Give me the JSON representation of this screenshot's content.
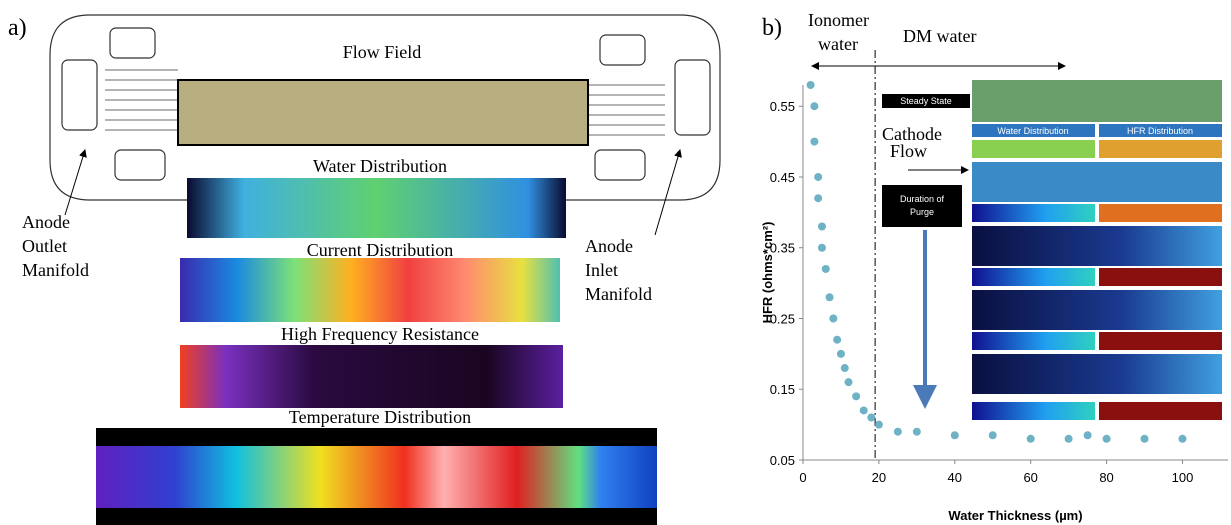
{
  "panel_a": {
    "label": "a)",
    "titles": [
      "Flow Field",
      "Water Distribution",
      "Current Distribution",
      "High Frequency Resistance",
      "Temperature Distribution"
    ],
    "outlet_label": [
      "Anode",
      "Outlet",
      "Manifold"
    ],
    "inlet_label": [
      "Anode",
      "Inlet",
      "Manifold"
    ]
  },
  "chart_data": {
    "type": "scatter",
    "label": "b)",
    "x_label": "Water Thickness (µm)",
    "y_label": "HFR (ohms*cm²)",
    "xlim": [
      0,
      112
    ],
    "ylim": [
      0.05,
      0.58
    ],
    "xticks": [
      0,
      20,
      40,
      60,
      80,
      100
    ],
    "yticks": [
      0.05,
      0.15,
      0.25,
      0.35,
      0.45,
      0.55
    ],
    "region_divider_x": 19,
    "region_labels": [
      [
        "Ionomer",
        "water"
      ],
      [
        "DM water"
      ]
    ],
    "inset_labels": {
      "steady_state": "Steady State",
      "water_header": "Water Distribution",
      "hfr_header": "HFR Distribution",
      "flow": [
        "Cathode",
        "Flow"
      ],
      "purge": [
        "Duration of",
        "Purge"
      ]
    },
    "series": [
      {
        "color": "#4a9fb8",
        "x": [
          2,
          3,
          3,
          4,
          4,
          5,
          5,
          6,
          7,
          8,
          9,
          10,
          11,
          12,
          14,
          16,
          18,
          20,
          25,
          30,
          40,
          50,
          60,
          70,
          75,
          80,
          90,
          100
        ],
        "values": [
          0.58,
          0.55,
          0.5,
          0.45,
          0.42,
          0.38,
          0.35,
          0.32,
          0.28,
          0.25,
          0.22,
          0.2,
          0.18,
          0.16,
          0.14,
          0.12,
          0.11,
          0.1,
          0.09,
          0.09,
          0.085,
          0.085,
          0.08,
          0.08,
          0.085,
          0.08,
          0.08,
          0.08
        ]
      }
    ]
  }
}
